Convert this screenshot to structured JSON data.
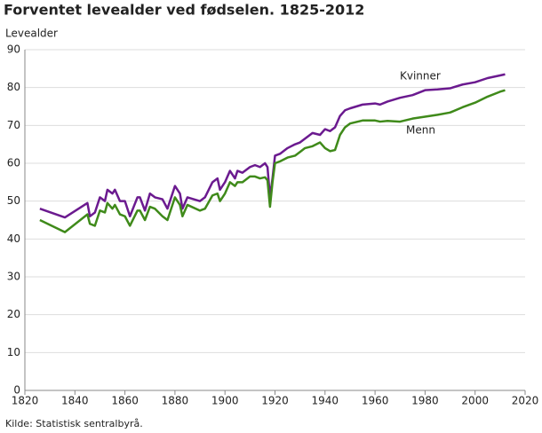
{
  "chart_data": {
    "type": "line",
    "title": "Forventet levealder ved fødselen. 1825-2012",
    "ylabel": "Levealder",
    "source": "Kilde: Statistisk sentralbyrå.",
    "x": [
      1826,
      1836,
      1845,
      1846,
      1848,
      1850,
      1852,
      1853,
      1855,
      1856,
      1858,
      1860,
      1862,
      1865,
      1866,
      1868,
      1870,
      1872,
      1875,
      1877,
      1880,
      1882,
      1883,
      1885,
      1890,
      1892,
      1895,
      1897,
      1898,
      1900,
      1902,
      1904,
      1905,
      1907,
      1910,
      1912,
      1914,
      1916,
      1917,
      1918,
      1919,
      1920,
      1922,
      1925,
      1928,
      1930,
      1932,
      1935,
      1938,
      1940,
      1942,
      1944,
      1946,
      1948,
      1950,
      1955,
      1960,
      1962,
      1965,
      1970,
      1975,
      1980,
      1985,
      1990,
      1995,
      2000,
      2005,
      2010,
      2012
    ],
    "series": [
      {
        "name": "Kvinner",
        "color": "#6b1a8f",
        "values": [
          48,
          45.7,
          49.5,
          46,
          47,
          51,
          50,
          53,
          52,
          53,
          50,
          50,
          46,
          51,
          51,
          47.5,
          52,
          51,
          50.5,
          48,
          54,
          52,
          48,
          51,
          50,
          51,
          55,
          56,
          53,
          55,
          58,
          56,
          58,
          57.5,
          59,
          59.5,
          59,
          60,
          59,
          51,
          56,
          62,
          62.5,
          64,
          65,
          65.5,
          66.5,
          68,
          67.5,
          69,
          68.5,
          69.5,
          72.5,
          74,
          74.5,
          75.5,
          75.8,
          75.5,
          76.3,
          77.3,
          78,
          79.3,
          79.5,
          79.8,
          80.8,
          81.4,
          82.5,
          83.2,
          83.5
        ]
      },
      {
        "name": "Menn",
        "color": "#3f8a1a",
        "values": [
          45,
          41.8,
          46.5,
          44,
          43.5,
          47.5,
          47,
          49.5,
          48,
          49,
          46.5,
          46,
          43.5,
          47.5,
          47.5,
          45,
          48.5,
          48,
          46,
          45,
          51,
          49,
          46,
          49,
          47.5,
          48,
          51.5,
          52,
          50,
          52,
          55,
          54,
          55,
          55,
          56.5,
          56.5,
          56,
          56.3,
          55.5,
          48.5,
          55,
          60,
          60.5,
          61.5,
          62,
          63,
          64,
          64.5,
          65.5,
          64,
          63.2,
          63.5,
          67.5,
          69.5,
          70.5,
          71.3,
          71.3,
          71,
          71.2,
          71,
          71.8,
          72.3,
          72.8,
          73.4,
          74.8,
          76,
          77.6,
          78.9,
          79.3
        ]
      }
    ],
    "xlim": [
      1820,
      2020
    ],
    "xticks": [
      1820,
      1840,
      1860,
      1880,
      1900,
      1920,
      1940,
      1960,
      1980,
      2000,
      2020
    ],
    "ylim": [
      0,
      90
    ],
    "yticks": [
      0,
      10,
      20,
      30,
      40,
      50,
      60,
      70,
      80,
      90
    ],
    "grid": true
  }
}
